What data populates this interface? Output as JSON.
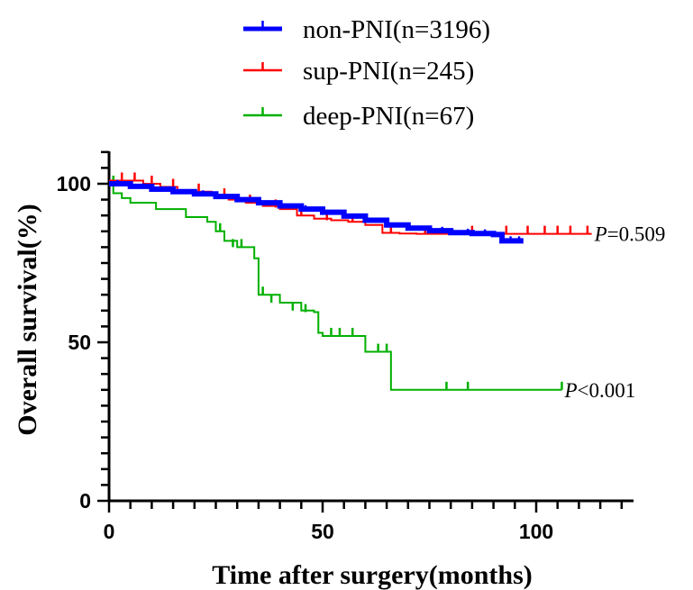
{
  "chart_data": {
    "type": "line",
    "subtype": "kaplan-meier",
    "title": "",
    "xlabel": "Time after surgery(months)",
    "ylabel": "Overall survival(%)",
    "xlim": [
      0,
      120
    ],
    "ylim": [
      0,
      110
    ],
    "xticks": [
      0,
      50,
      100
    ],
    "yticks": [
      0,
      50,
      100
    ],
    "grid": false,
    "legend_position": "top-center",
    "series": [
      {
        "name": "non-PNI(n=3196)",
        "color": "#0000ff",
        "x": [
          0,
          5,
          10,
          15,
          20,
          25,
          30,
          35,
          40,
          45,
          50,
          55,
          60,
          65,
          70,
          75,
          80,
          85,
          90,
          92,
          97
        ],
        "y": [
          100,
          99.2,
          98.3,
          97.5,
          96.8,
          96,
          95,
          94,
          93,
          92,
          91,
          89.8,
          88.5,
          87,
          86,
          85.2,
          84.6,
          84.3,
          84,
          82,
          82
        ]
      },
      {
        "name": "sup-PNI(n=245)",
        "color": "#ff0000",
        "x": [
          0,
          4,
          8,
          12,
          16,
          20,
          24,
          28,
          32,
          36,
          40,
          44,
          48,
          52,
          56,
          60,
          64,
          68,
          72,
          113
        ],
        "y": [
          101,
          101,
          100,
          99,
          98,
          97.5,
          96.5,
          95,
          94,
          93,
          92,
          90,
          89,
          88.5,
          88,
          87,
          84.5,
          84.3,
          84.2,
          84.2
        ]
      },
      {
        "name": "deep-PNI(n=67)",
        "color": "#00b000",
        "x": [
          0,
          1,
          3,
          5,
          11,
          18,
          23,
          25,
          27,
          30,
          34,
          35,
          40,
          45,
          48,
          49,
          50,
          55,
          60,
          66,
          70,
          80,
          90,
          100,
          106
        ],
        "y": [
          100,
          97,
          95.5,
          94,
          92,
          89.5,
          88,
          85,
          82,
          80,
          76.5,
          65,
          62.5,
          60,
          59.5,
          53,
          52,
          52,
          47,
          35,
          35,
          35,
          35,
          35,
          35
        ]
      }
    ],
    "censor_marks": {
      "non-PNI(n=3196)": [
        [
          2,
          99.8
        ],
        [
          8,
          98.7
        ],
        [
          14,
          97.8
        ],
        [
          22,
          96.5
        ],
        [
          33,
          94.5
        ],
        [
          46,
          91.8
        ],
        [
          58,
          89
        ],
        [
          70,
          86
        ],
        [
          78,
          85
        ],
        [
          84,
          84.4
        ],
        [
          88,
          84.2
        ],
        [
          92,
          82
        ],
        [
          94,
          82
        ],
        [
          96,
          82
        ]
      ],
      "sup-PNI(n=245)": [
        [
          3,
          101
        ],
        [
          6,
          101
        ],
        [
          10,
          100
        ],
        [
          15,
          99
        ],
        [
          21,
          97.5
        ],
        [
          27,
          96
        ],
        [
          33,
          94
        ],
        [
          39,
          92.5
        ],
        [
          45,
          90
        ],
        [
          51,
          88.5
        ],
        [
          57,
          88
        ],
        [
          66,
          84.5
        ],
        [
          74,
          84.2
        ],
        [
          85,
          84.2
        ],
        [
          93,
          84.2
        ],
        [
          98,
          84.2
        ],
        [
          102,
          84.2
        ],
        [
          105,
          84.2
        ],
        [
          108,
          84.2
        ],
        [
          112,
          84.2
        ]
      ],
      "deep-PNI(n=67)": [
        [
          1,
          100
        ],
        [
          26,
          85
        ],
        [
          29,
          80
        ],
        [
          31,
          80
        ],
        [
          36,
          65
        ],
        [
          38,
          62.5
        ],
        [
          43,
          60
        ],
        [
          46,
          59.5
        ],
        [
          52,
          52
        ],
        [
          54,
          52
        ],
        [
          57,
          52
        ],
        [
          63,
          47
        ],
        [
          65,
          47
        ],
        [
          79,
          35
        ],
        [
          84,
          35
        ],
        [
          106,
          35
        ]
      ]
    },
    "annotations": [
      {
        "text": "P=0.509",
        "italic_prefix": "P",
        "rest": "=0.509",
        "x": 113,
        "y": 84.2
      },
      {
        "text": "P<0.001",
        "italic_prefix": "P",
        "rest": "<0.001",
        "x": 106,
        "y": 35
      }
    ]
  }
}
